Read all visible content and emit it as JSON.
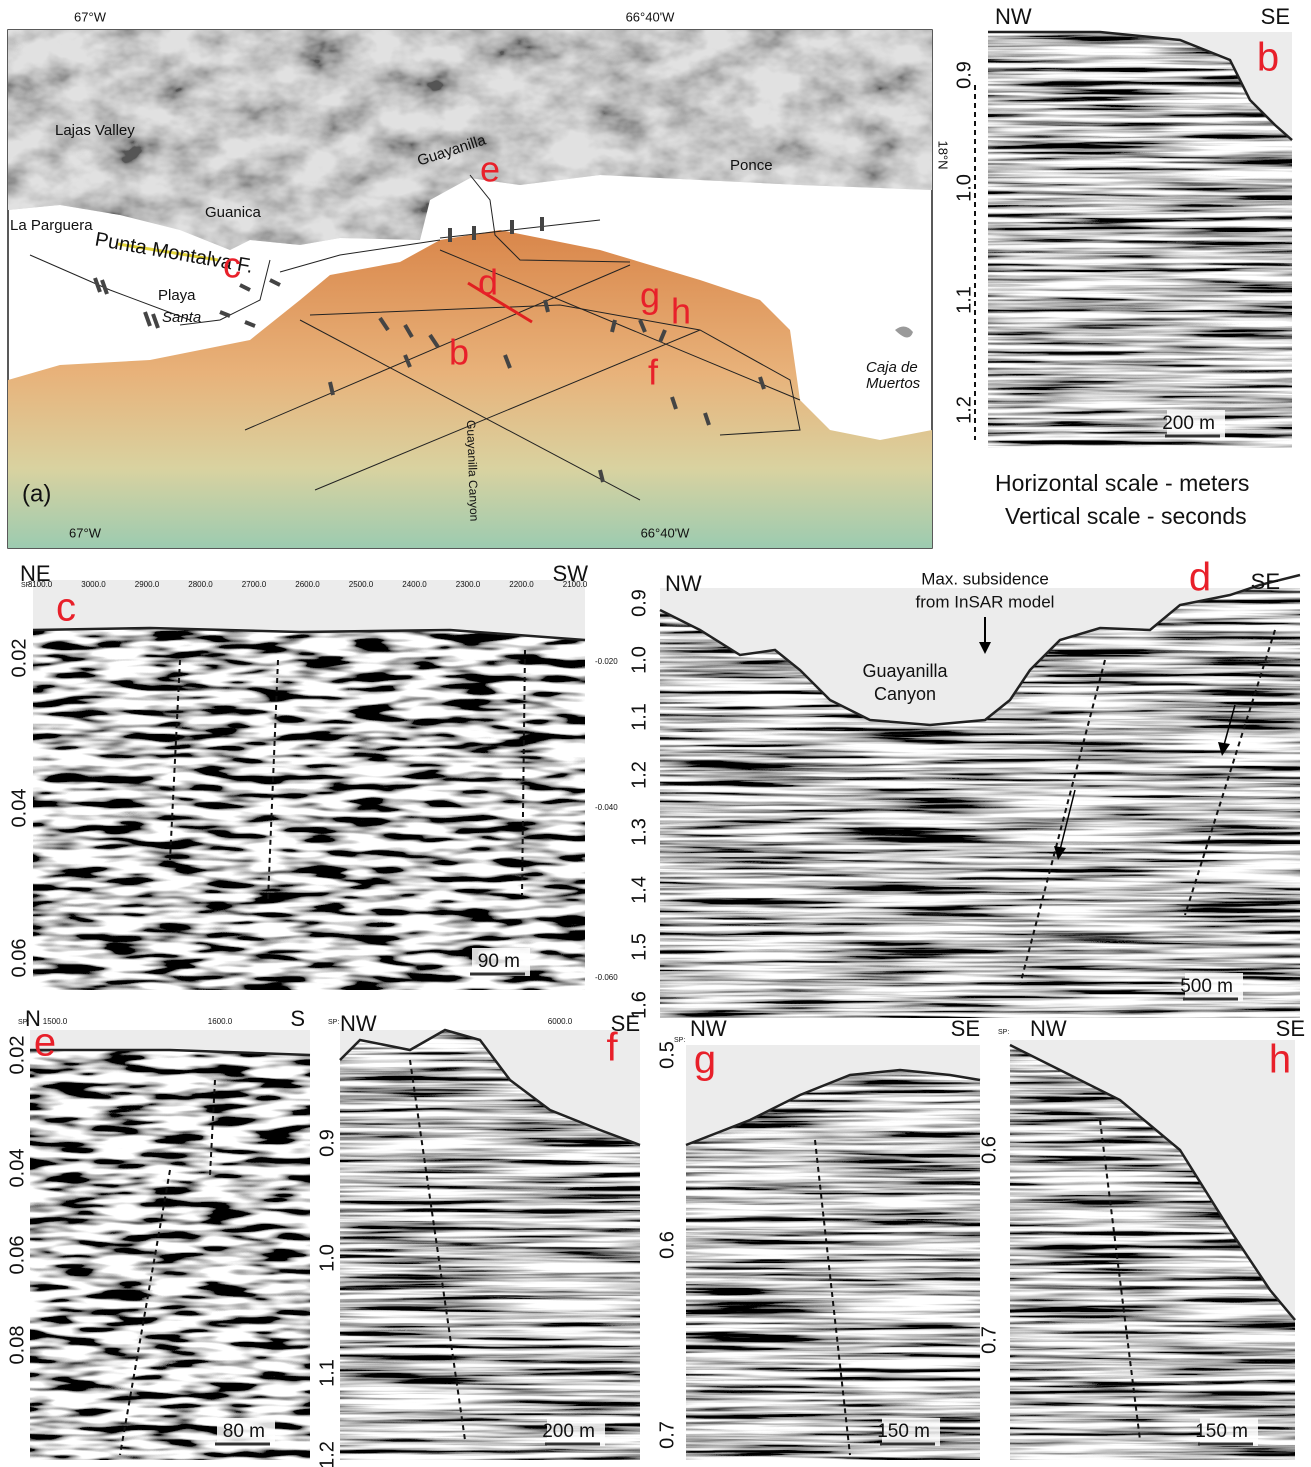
{
  "map_panel": {
    "label": "(a)",
    "lon_top": [
      "67°W",
      "66°40'W"
    ],
    "lon_bottom": [
      "67°W",
      "66°40'W"
    ],
    "lat": "18°N",
    "places": [
      "Lajas Valley",
      "Guayanilla",
      "Ponce",
      "Guanica",
      "La Parguera",
      "Punta Montalva F.",
      "Playa",
      "Santa",
      "Caja de",
      "Muertos",
      "Guayanilla Canyon"
    ],
    "profile_letters": [
      "b",
      "c",
      "d",
      "e",
      "f",
      "g",
      "h"
    ]
  },
  "scale_note": [
    "Horizontal scale - meters",
    "Vertical scale - seconds"
  ],
  "profiles": [
    {
      "letter": "b",
      "left": "NW",
      "right": "SE",
      "yticks": [
        "0.9",
        "1.0",
        "1.1",
        "1.2"
      ],
      "scale_bar": "200 m"
    },
    {
      "letter": "c",
      "left": "NE",
      "right": "SW",
      "yticks": [
        "0.02",
        "0.04",
        "0.06"
      ],
      "scale_bar": "90 m",
      "sp_label": "SP:",
      "sp_ticks": [
        "3100.0",
        "3000.0",
        "2900.0",
        "2800.0",
        "2700.0",
        "2600.0",
        "2500.0",
        "2400.0",
        "2300.0",
        "2200.0",
        "2100.0"
      ],
      "right_ticks": [
        "-0.020",
        "-0.040",
        "-0.060"
      ]
    },
    {
      "letter": "d",
      "left": "NW",
      "right": "SE",
      "yticks": [
        "0.9",
        "1.0",
        "1.1",
        "1.2",
        "1.3",
        "1.4",
        "1.5",
        "1.6"
      ],
      "scale_bar": "500 m",
      "annotations": [
        "Max. subsidence",
        "from InSAR model",
        "Guayanilla",
        "Canyon"
      ]
    },
    {
      "letter": "e",
      "left": "N",
      "right": "S",
      "yticks": [
        "0.02",
        "0.04",
        "0.06",
        "0.08"
      ],
      "scale_bar": "80 m",
      "sp_label": "SP:",
      "sp_ticks": [
        "1500.0",
        "1600.0"
      ]
    },
    {
      "letter": "f",
      "left": "NW",
      "right": "SE",
      "yticks": [
        "0.9",
        "1.0",
        "1.1",
        "1.2"
      ],
      "scale_bar": "200 m",
      "sp_label": "SP:",
      "sp_ticks": [
        "6000.0"
      ]
    },
    {
      "letter": "g",
      "left": "NW",
      "right": "SE",
      "yticks": [
        "0.5",
        "0.6",
        "0.7"
      ],
      "scale_bar": "150 m",
      "sp_label": "SP:"
    },
    {
      "letter": "h",
      "left": "NW",
      "right": "SE",
      "yticks": [
        "0.6",
        "0.7"
      ],
      "scale_bar": "150 m",
      "sp_label": "SP:"
    }
  ]
}
